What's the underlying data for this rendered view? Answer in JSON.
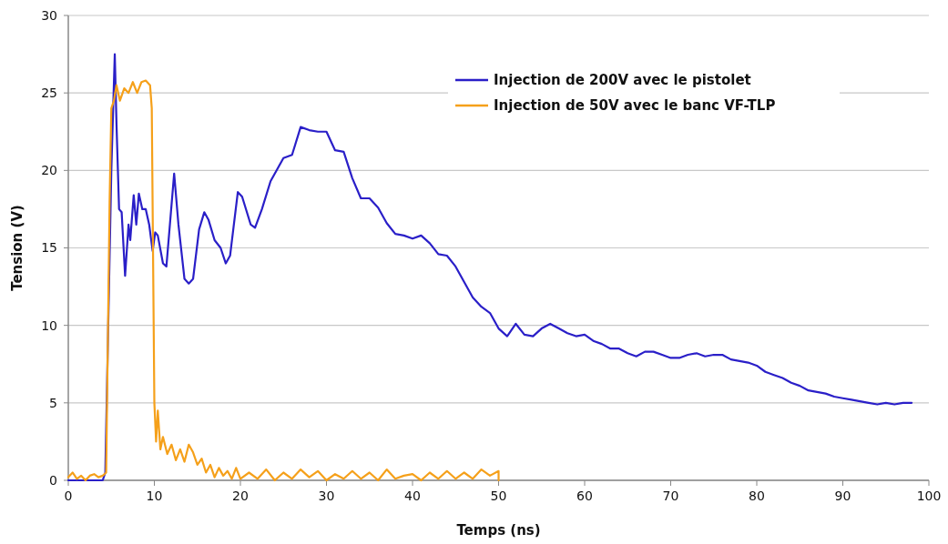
{
  "chart_data": {
    "type": "line",
    "xlabel": "Temps (ns)",
    "ylabel": "Tension (V)",
    "xlim": [
      0,
      100
    ],
    "xticks": [
      0,
      10,
      20,
      30,
      40,
      50,
      60,
      70,
      80,
      90,
      100
    ],
    "ylim": [
      0,
      30
    ],
    "yticks": [
      0,
      5,
      10,
      15,
      20,
      25,
      30
    ],
    "grid": "y",
    "legend": "top right",
    "marker": "none",
    "line_style": "solid",
    "series": [
      {
        "name": "Injection de 200V avec le pistolet",
        "color": "#2a1fc8",
        "x": [
          0,
          4,
          4.3,
          5.0,
          5.4,
          5.6,
          5.9,
          6.2,
          6.6,
          7.0,
          7.2,
          7.6,
          7.9,
          8.2,
          8.6,
          9.0,
          9.4,
          9.8,
          10.1,
          10.4,
          11.0,
          11.4,
          12.3,
          12.8,
          13.5,
          14.0,
          14.5,
          15.2,
          15.8,
          16.3,
          17.0,
          17.7,
          18.3,
          18.8,
          19.7,
          20.2,
          21.2,
          21.7,
          22.5,
          23.5,
          25,
          26,
          27,
          28,
          29,
          30,
          31,
          32,
          33,
          34,
          35,
          36,
          37,
          38,
          39,
          40,
          41,
          42,
          43,
          44,
          45,
          46,
          47,
          48,
          49,
          50,
          51,
          52,
          53,
          54,
          55,
          56,
          57,
          58,
          59,
          60,
          61,
          62,
          63,
          64,
          65,
          66,
          67,
          68,
          69,
          70,
          71,
          72,
          73,
          74,
          75,
          76,
          77,
          78,
          79,
          80,
          81,
          82,
          83,
          84,
          85,
          86,
          87,
          88,
          89,
          90,
          91,
          92,
          93,
          94,
          95,
          96,
          97,
          98
        ],
        "values": [
          0,
          0,
          0.5,
          20,
          27.5,
          23,
          17.5,
          17.3,
          13.2,
          16.5,
          15.5,
          18.4,
          16.5,
          18.5,
          17.5,
          17.5,
          16.5,
          14.8,
          16,
          15.8,
          14,
          13.8,
          19.8,
          16.5,
          13,
          12.7,
          13,
          16.2,
          17.3,
          16.8,
          15.5,
          15,
          14,
          14.5,
          18.6,
          18.3,
          16.5,
          16.3,
          17.5,
          19.3,
          20.8,
          21,
          22.8,
          22.6,
          22.5,
          22.5,
          21.3,
          21.2,
          19.5,
          18.2,
          18.2,
          17.6,
          16.6,
          15.9,
          15.8,
          15.6,
          15.8,
          15.3,
          14.6,
          14.5,
          13.8,
          12.8,
          11.8,
          11.2,
          10.8,
          9.8,
          9.3,
          10.1,
          9.4,
          9.3,
          9.8,
          10.1,
          9.8,
          9.5,
          9.3,
          9.4,
          9,
          8.8,
          8.5,
          8.5,
          8.2,
          8,
          8.3,
          8.3,
          8.1,
          7.9,
          7.9,
          8.1,
          8.2,
          8,
          8.1,
          8.1,
          7.8,
          7.7,
          7.6,
          7.4,
          7,
          6.8,
          6.6,
          6.3,
          6.1,
          5.8,
          5.7,
          5.6,
          5.4,
          5.3,
          5.2,
          5.1,
          5,
          4.9,
          5,
          4.9,
          5,
          5
        ]
      },
      {
        "name": "Injection de 50V avec le banc VF-TLP",
        "color": "#f5a01a",
        "x": [
          0,
          0.5,
          1,
          1.5,
          2,
          2.5,
          3,
          3.5,
          4,
          4.4,
          4.8,
          5.0,
          5.3,
          5.6,
          6,
          6.5,
          7,
          7.5,
          8,
          8.5,
          9,
          9.5,
          9.7,
          10,
          10.2,
          10.4,
          10.7,
          11,
          11.5,
          12,
          12.5,
          13,
          13.5,
          14,
          14.5,
          15,
          15.5,
          16,
          16.5,
          17,
          17.5,
          18,
          18.5,
          19,
          19.5,
          20,
          21,
          22,
          23,
          24,
          25,
          26,
          27,
          28,
          29,
          30,
          31,
          32,
          33,
          34,
          35,
          36,
          37,
          38,
          39,
          40,
          41,
          42,
          43,
          44,
          45,
          46,
          47,
          48,
          49,
          50,
          50
        ],
        "values": [
          0.2,
          0.5,
          0.1,
          0.3,
          0,
          0.3,
          0.4,
          0.2,
          0.3,
          0.5,
          18,
          24,
          24.5,
          25.5,
          24.5,
          25.3,
          25,
          25.7,
          25,
          25.7,
          25.8,
          25.5,
          24,
          5,
          2.5,
          4.5,
          2,
          2.8,
          1.7,
          2.3,
          1.3,
          2,
          1.2,
          2.3,
          1.8,
          1,
          1.4,
          0.5,
          1,
          0.2,
          0.8,
          0.3,
          0.6,
          0.1,
          0.8,
          0.1,
          0.5,
          0.1,
          0.7,
          0,
          0.5,
          0.1,
          0.7,
          0.2,
          0.6,
          0,
          0.4,
          0.1,
          0.6,
          0.1,
          0.5,
          0,
          0.7,
          0.1,
          0.3,
          0.4,
          0,
          0.5,
          0.1,
          0.6,
          0.1,
          0.5,
          0.1,
          0.7,
          0.3,
          0.6,
          0
        ]
      }
    ]
  }
}
